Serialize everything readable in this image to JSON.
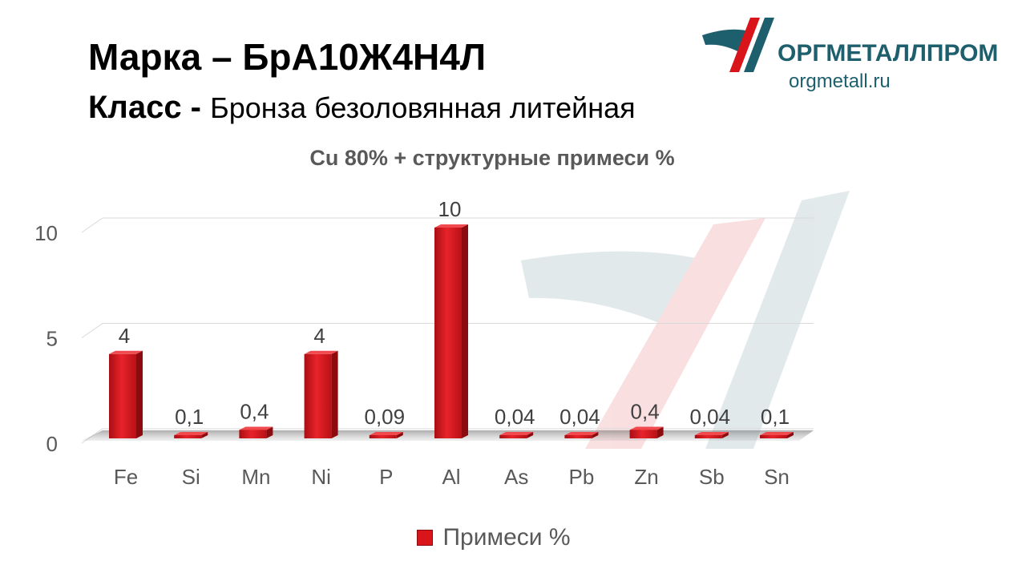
{
  "header": {
    "grade_label": "Марка",
    "grade_dash": "–",
    "grade_value": "БрА10Ж4Н4Л",
    "class_label": "Класс -",
    "class_value": "Бронза безоловянная литейная"
  },
  "logo": {
    "name": "ОРГМЕТАЛЛПРОМ",
    "url": "orgmetall.ru",
    "colors": {
      "teal": "#1e5f6e",
      "red": "#d9141b"
    }
  },
  "chart_data": {
    "type": "bar",
    "title": "Cu 80% + структурные примеси %",
    "categories": [
      "Fe",
      "Si",
      "Mn",
      "Ni",
      "P",
      "Al",
      "As",
      "Pb",
      "Zn",
      "Sb",
      "Sn"
    ],
    "series": [
      {
        "name": "Примеси %",
        "values": [
          4,
          0.1,
          0.4,
          4,
          0.09,
          10,
          0.04,
          0.04,
          0.4,
          0.04,
          0.1
        ],
        "value_labels": [
          "4",
          "0,1",
          "0,4",
          "4",
          "0,09",
          "10",
          "0,04",
          "0,04",
          "0,4",
          "0,04",
          "0,1"
        ],
        "color": "#d9141b"
      }
    ],
    "yticks": [
      0,
      5,
      10
    ],
    "ylim": [
      0,
      10
    ],
    "xlabel": "",
    "ylabel": "",
    "grid": true,
    "legend": "bottom",
    "style": "3d"
  }
}
